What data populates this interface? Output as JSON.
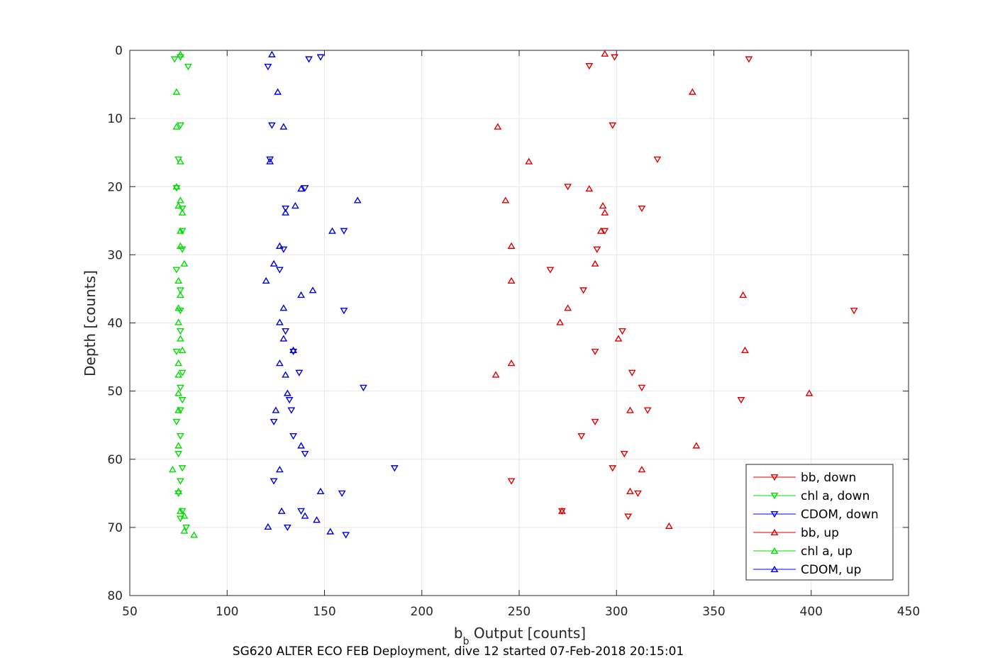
{
  "chart_data": {
    "type": "scatter",
    "xlabel_main": "b",
    "xlabel_sub": "b",
    "xlabel_rest": " Output [counts]",
    "ylabel": "Depth [counts]",
    "caption": "SG620 ALTER ECO FEB Deployment, dive 12 started 07-Feb-2018 20:15:01",
    "xlim": [
      50,
      450
    ],
    "ylim": [
      0,
      80
    ],
    "y_reversed": true,
    "grid": true,
    "legend_position": "bottom-right",
    "xticks": [
      "50",
      "100",
      "150",
      "200",
      "250",
      "300",
      "350",
      "400",
      "450"
    ],
    "yticks": [
      "0",
      "10",
      "20",
      "30",
      "40",
      "50",
      "60",
      "70",
      "80"
    ],
    "series": [
      {
        "name": "bb, down",
        "color": "#e00000",
        "marker": "triangle-down",
        "points": [
          [
            368,
            1.3
          ],
          [
            299,
            1.0
          ],
          [
            286,
            2.3
          ],
          [
            298,
            11.0
          ],
          [
            321,
            16.0
          ],
          [
            275,
            20.0
          ],
          [
            313,
            23.2
          ],
          [
            294,
            26.5
          ],
          [
            290,
            29.2
          ],
          [
            266,
            32.2
          ],
          [
            283,
            35.2
          ],
          [
            422,
            38.2
          ],
          [
            303,
            41.2
          ],
          [
            289,
            44.2
          ],
          [
            308,
            47.3
          ],
          [
            313,
            49.5
          ],
          [
            364,
            51.3
          ],
          [
            316,
            52.8
          ],
          [
            289,
            54.5
          ],
          [
            282,
            56.6
          ],
          [
            304,
            59.2
          ],
          [
            298,
            61.3
          ],
          [
            246,
            63.2
          ],
          [
            311,
            65.0
          ],
          [
            272,
            67.6
          ],
          [
            306,
            68.4
          ]
        ]
      },
      {
        "name": "chl a, down",
        "color": "#00dd00",
        "marker": "triangle-down",
        "points": [
          [
            76,
            1.0
          ],
          [
            73,
            1.3
          ],
          [
            80,
            2.4
          ],
          [
            76,
            11.0
          ],
          [
            75,
            16.0
          ],
          [
            74,
            20.2
          ],
          [
            77,
            23.2
          ],
          [
            77,
            26.5
          ],
          [
            77,
            29.2
          ],
          [
            74,
            32.2
          ],
          [
            76,
            35.2
          ],
          [
            76,
            38.2
          ],
          [
            76,
            41.2
          ],
          [
            74,
            44.2
          ],
          [
            77,
            47.3
          ],
          [
            76,
            49.5
          ],
          [
            77,
            51.3
          ],
          [
            76,
            52.8
          ],
          [
            74,
            54.5
          ],
          [
            76,
            56.6
          ],
          [
            75,
            59.2
          ],
          [
            77,
            61.3
          ],
          [
            76,
            63.2
          ],
          [
            75,
            65.0
          ],
          [
            77,
            67.6
          ],
          [
            76,
            68.7
          ],
          [
            79,
            70.0
          ]
        ]
      },
      {
        "name": "CDOM, down",
        "color": "#0000dd",
        "marker": "triangle-down",
        "points": [
          [
            148,
            1.0
          ],
          [
            142,
            1.3
          ],
          [
            121,
            2.4
          ],
          [
            123,
            11.0
          ],
          [
            122,
            16.0
          ],
          [
            140,
            20.2
          ],
          [
            130,
            23.2
          ],
          [
            160,
            26.5
          ],
          [
            129,
            29.2
          ],
          [
            127,
            32.2
          ],
          [
            160,
            38.2
          ],
          [
            130,
            41.2
          ],
          [
            134,
            44.2
          ],
          [
            137,
            47.3
          ],
          [
            170,
            49.5
          ],
          [
            132,
            51.3
          ],
          [
            133,
            52.8
          ],
          [
            124,
            54.5
          ],
          [
            134,
            56.6
          ],
          [
            140,
            59.2
          ],
          [
            186,
            61.3
          ],
          [
            124,
            63.2
          ],
          [
            159,
            65.0
          ],
          [
            138,
            67.6
          ],
          [
            131,
            70.0
          ],
          [
            161,
            71.1
          ]
        ]
      },
      {
        "name": "bb, up",
        "color": "#e00000",
        "marker": "triangle-up",
        "points": [
          [
            294,
            0.5
          ],
          [
            339,
            6.1
          ],
          [
            239,
            11.2
          ],
          [
            255,
            16.3
          ],
          [
            286,
            20.3
          ],
          [
            243,
            22.0
          ],
          [
            293,
            22.8
          ],
          [
            294,
            23.8
          ],
          [
            292,
            26.5
          ],
          [
            246,
            28.7
          ],
          [
            289,
            31.3
          ],
          [
            246,
            33.8
          ],
          [
            365,
            35.9
          ],
          [
            275,
            37.8
          ],
          [
            271,
            39.9
          ],
          [
            301,
            42.3
          ],
          [
            366,
            44.0
          ],
          [
            246,
            45.9
          ],
          [
            238,
            47.6
          ],
          [
            399,
            50.3
          ],
          [
            307,
            52.8
          ],
          [
            341,
            58.0
          ],
          [
            313,
            61.5
          ],
          [
            307,
            64.7
          ],
          [
            272,
            67.6
          ],
          [
            327,
            69.8
          ]
        ]
      },
      {
        "name": "chl a, up",
        "color": "#00dd00",
        "marker": "triangle-up",
        "points": [
          [
            76,
            0.6
          ],
          [
            74,
            6.1
          ],
          [
            74,
            11.2
          ],
          [
            76,
            16.3
          ],
          [
            74,
            20.0
          ],
          [
            76,
            22.0
          ],
          [
            75,
            22.8
          ],
          [
            77,
            23.8
          ],
          [
            76,
            26.5
          ],
          [
            76,
            28.7
          ],
          [
            78,
            31.3
          ],
          [
            75,
            33.8
          ],
          [
            76,
            35.9
          ],
          [
            75,
            37.8
          ],
          [
            75,
            39.9
          ],
          [
            76,
            42.3
          ],
          [
            77,
            44.0
          ],
          [
            75,
            45.9
          ],
          [
            75,
            47.6
          ],
          [
            75,
            50.3
          ],
          [
            75,
            52.8
          ],
          [
            75,
            58.0
          ],
          [
            72,
            61.5
          ],
          [
            75,
            64.7
          ],
          [
            76,
            67.6
          ],
          [
            78,
            68.3
          ],
          [
            78,
            70.5
          ],
          [
            83,
            71.1
          ]
        ]
      },
      {
        "name": "CDOM, up",
        "color": "#0000dd",
        "marker": "triangle-up",
        "points": [
          [
            123,
            0.6
          ],
          [
            126,
            6.1
          ],
          [
            129,
            11.2
          ],
          [
            122,
            16.3
          ],
          [
            138,
            20.3
          ],
          [
            167,
            22.0
          ],
          [
            135,
            22.8
          ],
          [
            130,
            23.8
          ],
          [
            154,
            26.5
          ],
          [
            127,
            28.7
          ],
          [
            124,
            31.3
          ],
          [
            120,
            33.8
          ],
          [
            144,
            35.2
          ],
          [
            138,
            35.9
          ],
          [
            129,
            37.8
          ],
          [
            127,
            39.9
          ],
          [
            129,
            42.3
          ],
          [
            134,
            44.0
          ],
          [
            127,
            45.9
          ],
          [
            130,
            47.6
          ],
          [
            131,
            50.3
          ],
          [
            125,
            52.8
          ],
          [
            138,
            58.0
          ],
          [
            127,
            61.5
          ],
          [
            148,
            64.7
          ],
          [
            128,
            67.6
          ],
          [
            146,
            68.9
          ],
          [
            140,
            68.3
          ],
          [
            121,
            69.9
          ],
          [
            153,
            70.6
          ]
        ]
      }
    ]
  }
}
